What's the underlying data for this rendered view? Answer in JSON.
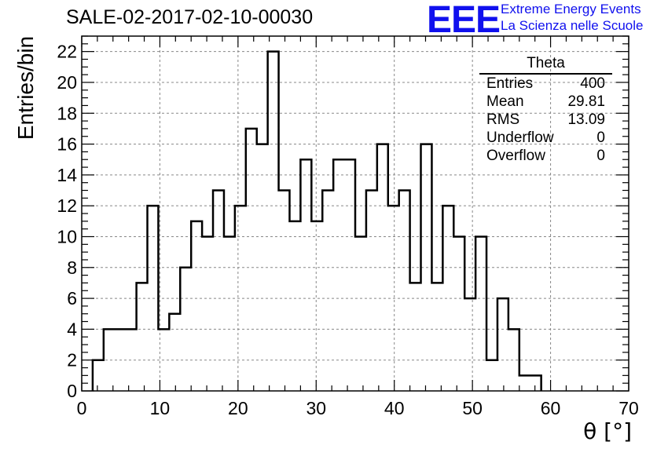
{
  "chart_data": {
    "type": "histogram",
    "title": "SALE-02-2017-02-10-00030",
    "xlabel": "θ [°]",
    "ylabel": "Entries/bin",
    "xlim": [
      0,
      70
    ],
    "ylim": [
      0,
      23
    ],
    "bin_width": 1.4,
    "x_ticks": [
      0,
      10,
      20,
      30,
      40,
      50,
      60,
      70
    ],
    "y_ticks": [
      0,
      2,
      4,
      6,
      8,
      10,
      12,
      14,
      16,
      18,
      20,
      22
    ],
    "grid": true,
    "bin_edges": [
      1.4,
      2.8,
      4.2,
      5.6,
      7.0,
      8.4,
      9.8,
      11.2,
      12.6,
      14.0,
      15.4,
      16.8,
      18.2,
      19.6,
      21.0,
      22.4,
      23.8,
      25.2,
      26.6,
      28.0,
      29.4,
      30.8,
      32.2,
      33.6,
      35.0,
      36.4,
      37.8,
      39.2,
      40.6,
      42.0,
      43.4,
      44.8,
      46.2,
      47.6,
      49.0,
      50.4,
      51.8,
      53.2,
      54.6,
      56.0,
      57.4,
      58.8
    ],
    "values": [
      2,
      4,
      4,
      4,
      7,
      12,
      4,
      5,
      8,
      11,
      10,
      13,
      10,
      12,
      17,
      16,
      22,
      13,
      11,
      15,
      11,
      13,
      15,
      15,
      10,
      13,
      16,
      12,
      13,
      7,
      16,
      7,
      12,
      10,
      6,
      10,
      2,
      6,
      4,
      1,
      1
    ],
    "stats_box": {
      "title": "Theta",
      "rows": [
        {
          "label": "Entries",
          "value": "400"
        },
        {
          "label": "Mean",
          "value": "29.81"
        },
        {
          "label": "RMS",
          "value": "13.09"
        },
        {
          "label": "Underflow",
          "value": "0"
        },
        {
          "label": "Overflow",
          "value": "0"
        }
      ]
    }
  },
  "logo": {
    "mark": "EEE",
    "line1": "Extreme Energy Events",
    "line2": "La Scienza nelle Scuole"
  }
}
